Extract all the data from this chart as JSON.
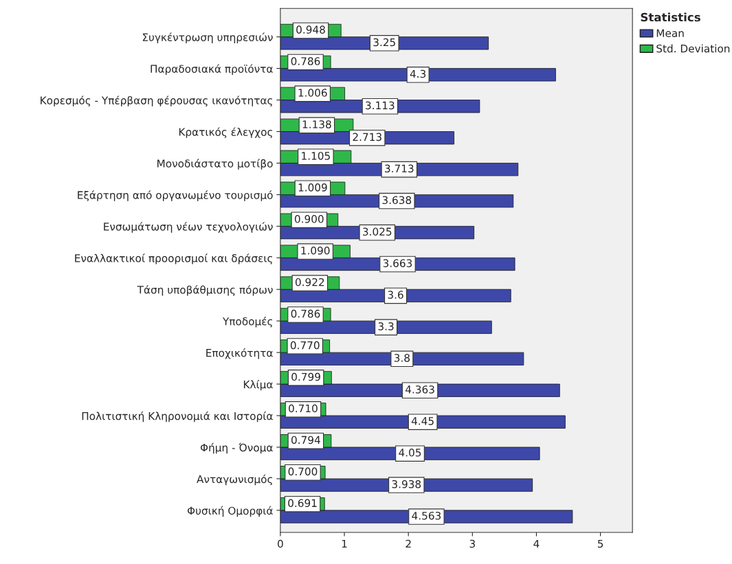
{
  "chart_data": {
    "type": "bar",
    "orientation": "horizontal",
    "categories": [
      "Συγκέντρωση υπηρεσιών",
      "Παραδοσιακά προϊόντα",
      "Κορεσμός - Υπέρβαση φέρουσας ικανότητας",
      "Κρατικός έλεγχος",
      "Μονοδιάστατο μοτίβο",
      "Εξάρτηση από οργανωμένο τουρισμό",
      "Ενσωμάτωση νέων τεχνολογιών",
      "Εναλλακτικοί προορισμοί και δράσεις",
      "Τάση υποβάθμισης πόρων",
      "Υποδομές",
      "Εποχικότητα",
      "Κλίμα",
      "Πολιτιστική Κληρονομιά και Ιστορία",
      "Φήμη - Όνομα",
      "Ανταγωνισμός",
      "Φυσική Ομορφιά"
    ],
    "series": [
      {
        "name": "Mean",
        "color": "#3e48a8",
        "values": [
          3.25,
          4.3,
          3.113,
          2.713,
          3.713,
          3.638,
          3.025,
          3.663,
          3.6,
          3.3,
          3.8,
          4.363,
          4.45,
          4.05,
          3.938,
          4.563
        ],
        "value_labels": [
          "3.25",
          "4.3",
          "3.113",
          "2.713",
          "3.713",
          "3.638",
          "3.025",
          "3.663",
          "3.6",
          "3.3",
          "3.8",
          "4.363",
          "4.45",
          "4.05",
          "3.938",
          "4.563"
        ]
      },
      {
        "name": "Std. Deviation",
        "color": "#2fb84a",
        "values": [
          0.948,
          0.786,
          1.006,
          1.138,
          1.105,
          1.009,
          0.9,
          1.09,
          0.922,
          0.786,
          0.77,
          0.799,
          0.71,
          0.794,
          0.7,
          0.691
        ],
        "value_labels": [
          "0.948",
          "0.786",
          "1.006",
          "1.138",
          "1.105",
          "1.009",
          "0.900",
          "1.090",
          "0.922",
          "0.786",
          "0.770",
          "0.799",
          "0.710",
          "0.794",
          "0.700",
          "0.691"
        ]
      }
    ],
    "legend_title": "Statistics",
    "legend": "top right",
    "xlim": [
      0,
      5.5
    ],
    "xticks": [
      0,
      1,
      2,
      3,
      4,
      5
    ],
    "grid": false
  }
}
